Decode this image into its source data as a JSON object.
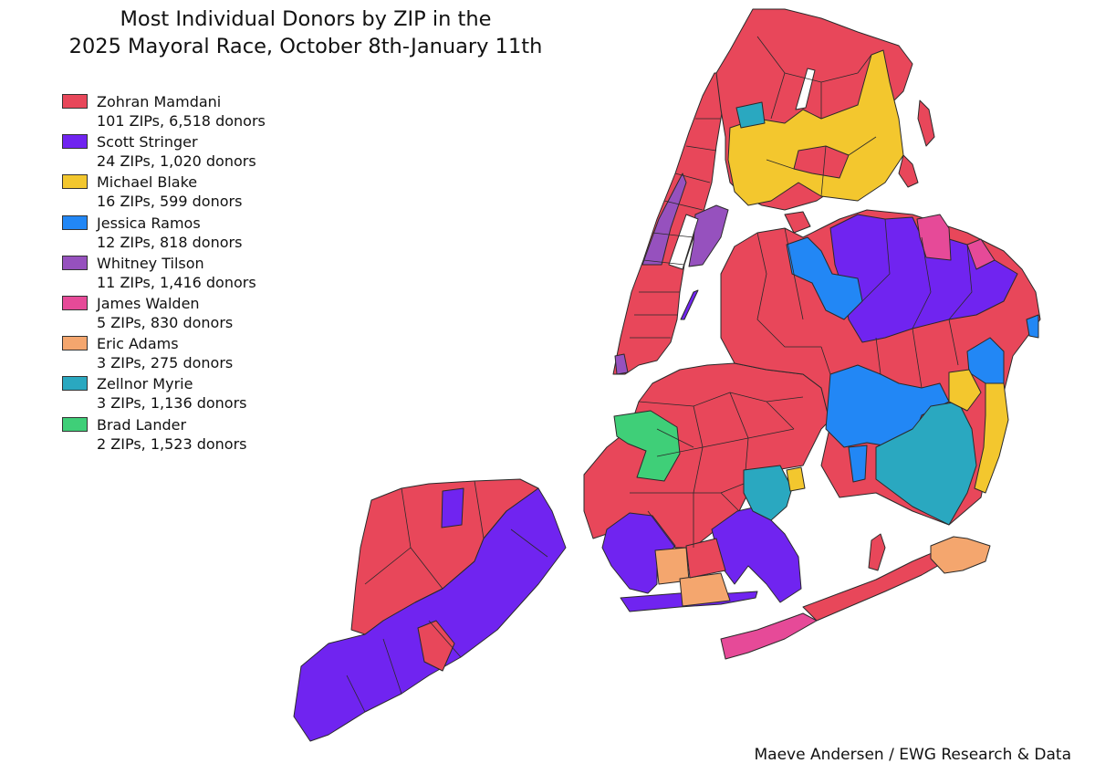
{
  "title": {
    "line1": "Most Individual Donors by ZIP in the",
    "line2": "2025 Mayoral Race, October 8th-January 11th"
  },
  "legend": [
    {
      "name": "Zohran Mamdani",
      "stats": "101 ZIPs, 6,518 donors",
      "color": "#e8475a"
    },
    {
      "name": "Scott Stringer",
      "stats": "24 ZIPs, 1,020 donors",
      "color": "#7024f0"
    },
    {
      "name": "Michael Blake",
      "stats": "16 ZIPs, 599 donors",
      "color": "#f3c72e"
    },
    {
      "name": "Jessica Ramos",
      "stats": "12 ZIPs, 818 donors",
      "color": "#2287f5"
    },
    {
      "name": "Whitney Tilson",
      "stats": "11 ZIPs, 1,416 donors",
      "color": "#9651be"
    },
    {
      "name": "James Walden",
      "stats": "5 ZIPs, 830 donors",
      "color": "#e64a98"
    },
    {
      "name": "Eric Adams",
      "stats": "3 ZIPs, 275 donors",
      "color": "#f4a66e"
    },
    {
      "name": "Zellnor Myrie",
      "stats": "3 ZIPs, 1,136 donors",
      "color": "#2aa8c0"
    },
    {
      "name": "Brad Lander",
      "stats": "2 ZIPs, 1,523 donors",
      "color": "#3fcf78"
    }
  ],
  "credit": "Maeve Andersen / EWG Research & Data"
}
